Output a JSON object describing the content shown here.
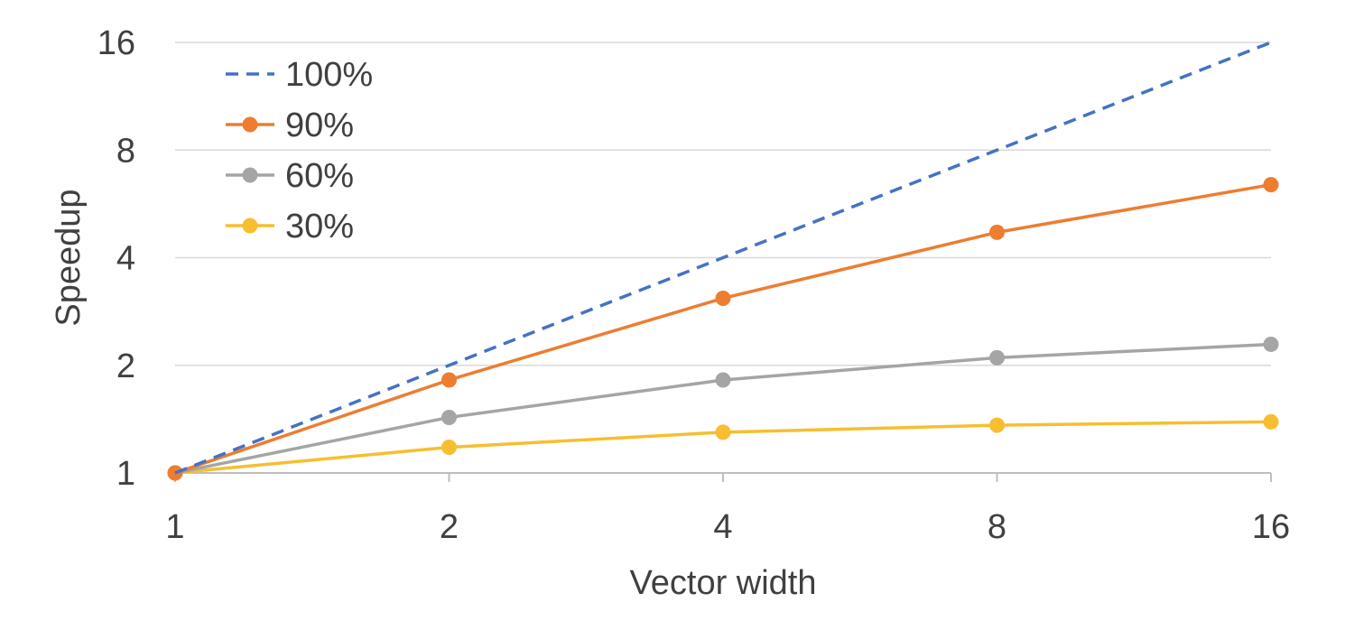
{
  "chart_data": {
    "type": "line",
    "title": "",
    "xlabel": "Vector width",
    "ylabel": "Speedup",
    "x_scale": "log2",
    "y_scale": "log2",
    "x": [
      1,
      2,
      4,
      8,
      16
    ],
    "x_tick_labels": [
      "1",
      "2",
      "4",
      "8",
      "16"
    ],
    "xlim": [
      1,
      16
    ],
    "y_ticks": [
      1,
      2,
      4,
      8,
      16
    ],
    "y_tick_labels": [
      "1",
      "2",
      "4",
      "8",
      "16"
    ],
    "ylim": [
      1,
      16
    ],
    "grid": {
      "horizontal": true,
      "vertical": false
    },
    "legend_position": "top-left",
    "series": [
      {
        "name": "100%",
        "values": [
          1,
          2,
          4,
          8,
          16
        ],
        "color": "#4472C4",
        "dashed": true,
        "markers": false
      },
      {
        "name": "90%",
        "values": [
          1,
          1.82,
          3.08,
          4.71,
          6.4
        ],
        "color": "#ED7D31",
        "dashed": false,
        "markers": true
      },
      {
        "name": "60%",
        "values": [
          1,
          1.43,
          1.82,
          2.1,
          2.29
        ],
        "color": "#A5A5A5",
        "dashed": false,
        "markers": true
      },
      {
        "name": "30%",
        "values": [
          1,
          1.18,
          1.3,
          1.36,
          1.39
        ],
        "color": "#F7BE30",
        "dashed": false,
        "markers": true
      }
    ]
  }
}
